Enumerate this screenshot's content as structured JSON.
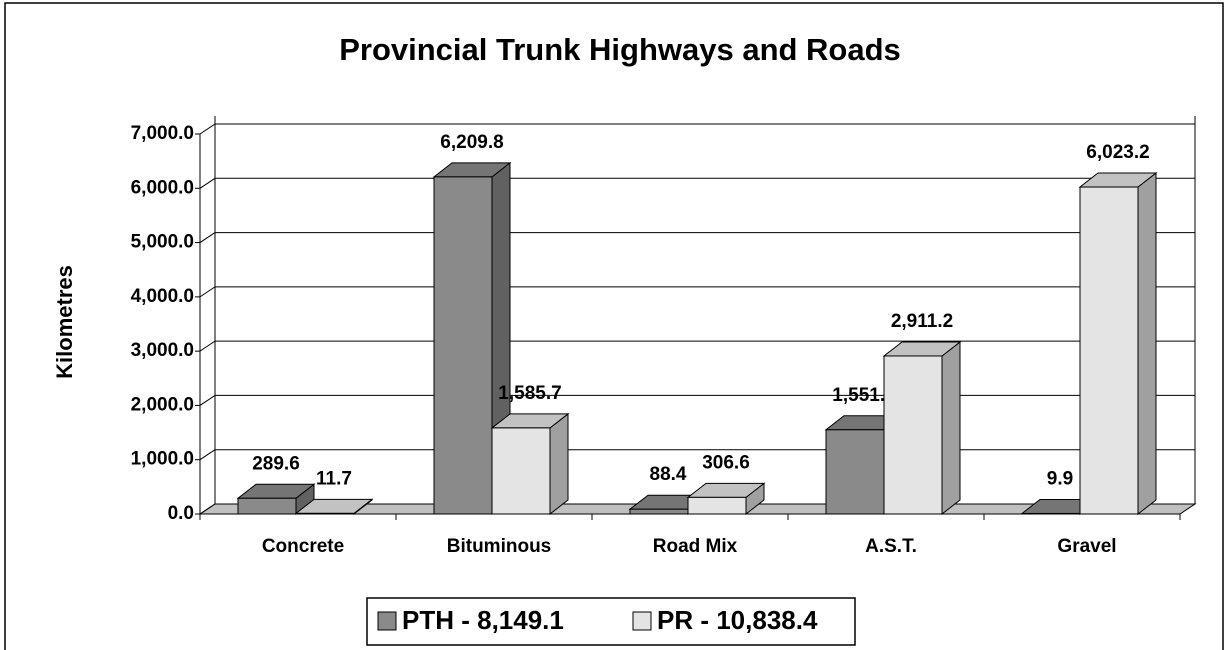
{
  "chart_data": {
    "type": "bar3d",
    "title": "Provincial Trunk Highways and Roads",
    "y_label": "Kilometres",
    "categories": [
      "Concrete",
      "Bituminous",
      "Road Mix",
      "A.S.T.",
      "Gravel"
    ],
    "series": [
      {
        "name": "PTH - 8,149.1",
        "color": "#8a8a8a",
        "values": [
          289.6,
          6209.8,
          88.4,
          1551.4,
          9.9
        ],
        "value_labels": [
          "289.6",
          "6,209.8",
          "88.4",
          "1,551.4",
          "9.9"
        ]
      },
      {
        "name": "PR - 10,838.4",
        "color": "#e4e4e4",
        "values": [
          11.7,
          1585.7,
          306.6,
          2911.2,
          6023.2
        ],
        "value_labels": [
          "11.7",
          "1,585.7",
          "306.6",
          "2,911.2",
          "6,023.2"
        ]
      }
    ],
    "ylim": [
      0,
      7000
    ],
    "yticks": [
      {
        "value": 0,
        "label": "0.0"
      },
      {
        "value": 1000,
        "label": "1,000.0"
      },
      {
        "value": 2000,
        "label": "2,000.0"
      },
      {
        "value": 3000,
        "label": "3,000.0"
      },
      {
        "value": 4000,
        "label": "4,000.0"
      },
      {
        "value": 5000,
        "label": "5,000.0"
      },
      {
        "value": 6000,
        "label": "6,000.0"
      },
      {
        "value": 7000,
        "label": "7,000.0"
      }
    ],
    "grid": true,
    "legend": "bottom"
  }
}
